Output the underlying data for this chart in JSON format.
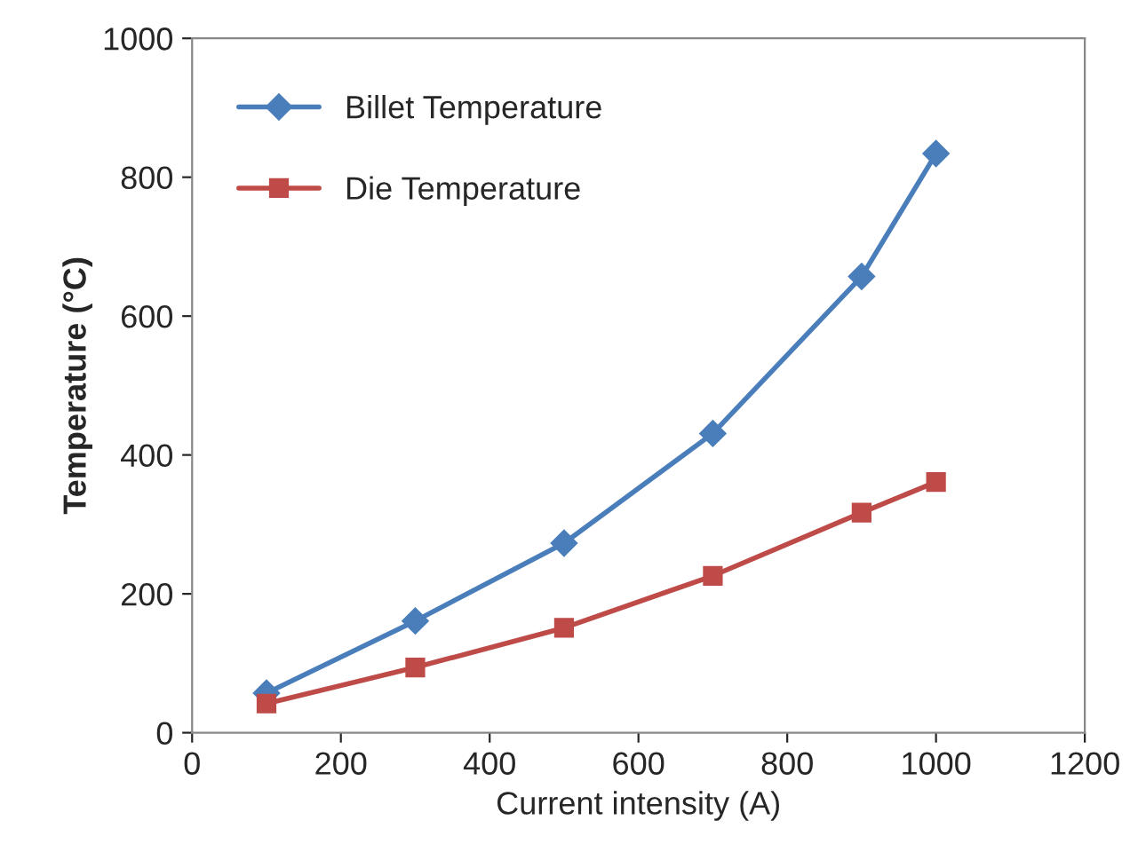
{
  "chart_data": {
    "type": "line",
    "xlabel": "Current intensity (A)",
    "ylabel": "Temperature (°C)",
    "x": [
      100,
      300,
      500,
      700,
      900,
      1000
    ],
    "series": [
      {
        "name": "Billet Temperature",
        "color": "#4a7ebb",
        "marker": "diamond",
        "values": [
          57,
          161,
          273,
          431,
          657,
          834
        ]
      },
      {
        "name": "Die Temperature",
        "color": "#be4b48",
        "marker": "square",
        "values": [
          42,
          94,
          151,
          226,
          317,
          361
        ]
      }
    ],
    "xlim": [
      0,
      1200
    ],
    "xticks": [
      0,
      200,
      400,
      600,
      800,
      1000,
      1200
    ],
    "ylim": [
      0,
      1000
    ],
    "yticks": [
      0,
      200,
      400,
      600,
      800,
      1000
    ],
    "grid": false,
    "legend": "top left",
    "line_style": "solid"
  }
}
